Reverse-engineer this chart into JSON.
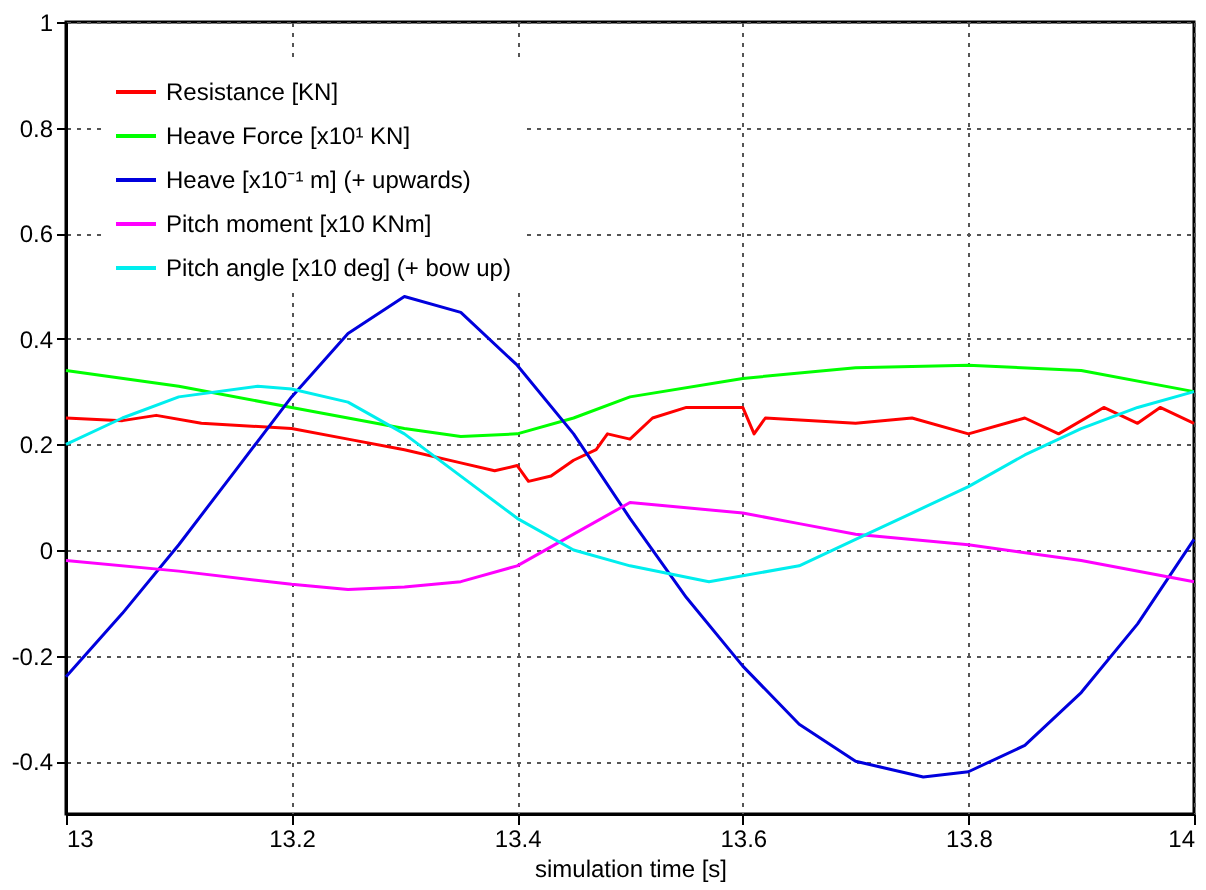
{
  "chart_data": {
    "type": "line",
    "xlabel": "simulation time [s]",
    "xlim": [
      13,
      14
    ],
    "xticks": [
      13,
      13.2,
      13.4,
      13.6,
      13.8,
      14
    ],
    "ylim": [
      -0.5,
      1
    ],
    "yticks": [
      -0.4,
      -0.2,
      0,
      0.2,
      0.4,
      0.6,
      0.8,
      1
    ],
    "grid": true,
    "legend": "top left",
    "line_style": "solid",
    "marker": "none",
    "series": [
      {
        "name": "Resistance [KN]",
        "color": "#ff0000",
        "x": [
          13.0,
          13.05,
          13.08,
          13.12,
          13.2,
          13.25,
          13.3,
          13.35,
          13.38,
          13.4,
          13.41,
          13.43,
          13.45,
          13.47,
          13.48,
          13.5,
          13.52,
          13.55,
          13.6,
          13.61,
          13.62,
          13.7,
          13.75,
          13.8,
          13.85,
          13.88,
          13.92,
          13.95,
          13.97,
          14.0
        ],
        "values": [
          0.25,
          0.245,
          0.255,
          0.24,
          0.23,
          0.21,
          0.19,
          0.165,
          0.15,
          0.16,
          0.13,
          0.14,
          0.17,
          0.19,
          0.22,
          0.21,
          0.25,
          0.27,
          0.27,
          0.22,
          0.25,
          0.24,
          0.25,
          0.22,
          0.25,
          0.22,
          0.27,
          0.24,
          0.27,
          0.24
        ]
      },
      {
        "name": "Heave Force [x10¹ KN]",
        "color": "#00ff00",
        "x": [
          13.0,
          13.1,
          13.2,
          13.3,
          13.35,
          13.4,
          13.45,
          13.5,
          13.6,
          13.7,
          13.8,
          13.9,
          14.0
        ],
        "values": [
          0.34,
          0.31,
          0.27,
          0.23,
          0.215,
          0.22,
          0.25,
          0.29,
          0.325,
          0.345,
          0.35,
          0.34,
          0.3
        ]
      },
      {
        "name": "Heave [x10⁻¹ m] (+ upwards)",
        "color": "#0000dd",
        "x": [
          13.0,
          13.05,
          13.1,
          13.15,
          13.2,
          13.25,
          13.3,
          13.35,
          13.4,
          13.45,
          13.5,
          13.55,
          13.6,
          13.65,
          13.7,
          13.76,
          13.8,
          13.85,
          13.9,
          13.95,
          14.0
        ],
        "values": [
          -0.24,
          -0.12,
          0.01,
          0.15,
          0.29,
          0.41,
          0.48,
          0.45,
          0.35,
          0.22,
          0.06,
          -0.09,
          -0.22,
          -0.33,
          -0.4,
          -0.43,
          -0.42,
          -0.37,
          -0.27,
          -0.14,
          0.02
        ]
      },
      {
        "name": "Pitch moment [x10 KNm]",
        "color": "#ff00ff",
        "x": [
          13.0,
          13.1,
          13.2,
          13.25,
          13.3,
          13.35,
          13.4,
          13.45,
          13.5,
          13.55,
          13.6,
          13.65,
          13.7,
          13.8,
          13.9,
          14.0
        ],
        "values": [
          -0.02,
          -0.04,
          -0.065,
          -0.075,
          -0.07,
          -0.06,
          -0.03,
          0.03,
          0.09,
          0.08,
          0.07,
          0.05,
          0.03,
          0.01,
          -0.02,
          -0.06
        ]
      },
      {
        "name": "Pitch angle [x10 deg] (+ bow up)",
        "color": "#00eeee",
        "x": [
          13.0,
          13.05,
          13.1,
          13.17,
          13.2,
          13.25,
          13.3,
          13.35,
          13.4,
          13.45,
          13.5,
          13.57,
          13.65,
          13.7,
          13.75,
          13.8,
          13.85,
          13.9,
          13.95,
          14.0
        ],
        "values": [
          0.2,
          0.25,
          0.29,
          0.31,
          0.305,
          0.28,
          0.22,
          0.14,
          0.06,
          0.0,
          -0.03,
          -0.06,
          -0.03,
          0.02,
          0.07,
          0.12,
          0.18,
          0.23,
          0.27,
          0.3
        ]
      }
    ]
  }
}
